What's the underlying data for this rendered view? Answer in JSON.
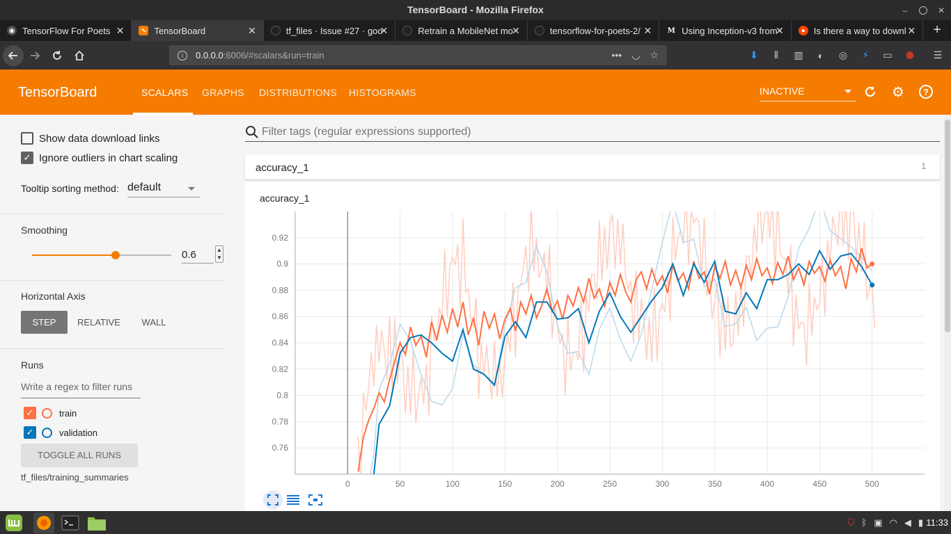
{
  "window": {
    "title": "TensorBoard - Mozilla Firefox"
  },
  "tabs": [
    {
      "label": "TensorFlow For Poets",
      "icon": "tensorflow-icon",
      "color": "#4a4a4a"
    },
    {
      "label": "TensorBoard",
      "icon": "tensorboard-icon",
      "color": "#f57c00"
    },
    {
      "label": "tf_files · Issue #27 · goo",
      "icon": "github-icon",
      "color": "#222222"
    },
    {
      "label": "Retrain a MobileNet mo",
      "icon": "github-icon",
      "color": "#222222"
    },
    {
      "label": "tensorflow-for-poets-2/",
      "icon": "github-icon",
      "color": "#222222"
    },
    {
      "label": "Using Inception-v3 from",
      "icon": "medium-icon",
      "color": "#222222"
    },
    {
      "label": "Is there a way to downl",
      "icon": "reddit-icon",
      "color": "#ff4500"
    }
  ],
  "url": {
    "host": "0.0.0.0",
    "rest": ":6006/#scalars&run=train"
  },
  "tensorboard": {
    "logo": "TensorBoard",
    "tabs": [
      "SCALARS",
      "GRAPHS",
      "DISTRIBUTIONS",
      "HISTOGRAMS"
    ],
    "active_tab": "SCALARS",
    "status": "INACTIVE",
    "accent": "#f57c00"
  },
  "sidebar": {
    "show_download_links": {
      "label": "Show data download links",
      "checked": false
    },
    "ignore_outliers": {
      "label": "Ignore outliers in chart scaling",
      "checked": true
    },
    "tooltip_label": "Tooltip sorting method:",
    "tooltip_value": "default",
    "smoothing_label": "Smoothing",
    "smoothing_value": "0.6",
    "horizontal_axis_label": "Horizontal Axis",
    "axis_options": [
      "STEP",
      "RELATIVE",
      "WALL"
    ],
    "axis_active": "STEP",
    "runs_label": "Runs",
    "runs_filter_placeholder": "Write a regex to filter runs",
    "runs": [
      {
        "name": "train",
        "color": "#ff7043",
        "checked": true
      },
      {
        "name": "validation",
        "color": "#0077bb",
        "checked": true
      }
    ],
    "toggle_all": "TOGGLE ALL RUNS",
    "logdir": "tf_files/training_summaries"
  },
  "main": {
    "filter_placeholder": "Filter tags (regular expressions supported)",
    "category": {
      "name": "accuracy_1",
      "count": "1"
    },
    "card_title": "accuracy_1"
  },
  "clock": "11:33",
  "chart_data": {
    "type": "line",
    "title": "accuracy_1",
    "xlabel": "",
    "ylabel": "",
    "xlim": [
      -50,
      550
    ],
    "ylim": [
      0.74,
      0.94
    ],
    "x_ticks": [
      0,
      50,
      100,
      150,
      200,
      250,
      300,
      350,
      400,
      450,
      500
    ],
    "y_ticks": [
      0.76,
      0.78,
      0.8,
      0.82,
      0.84,
      0.86,
      0.88,
      0.9,
      0.92
    ],
    "grid": true,
    "series": [
      {
        "name": "train",
        "color": "#ff7043",
        "x": [
          10,
          15,
          20,
          25,
          30,
          35,
          40,
          45,
          50,
          55,
          60,
          65,
          70,
          75,
          80,
          85,
          90,
          95,
          100,
          105,
          110,
          115,
          120,
          125,
          130,
          135,
          140,
          145,
          150,
          155,
          160,
          165,
          170,
          175,
          180,
          185,
          190,
          195,
          200,
          205,
          210,
          215,
          220,
          225,
          230,
          235,
          240,
          245,
          250,
          255,
          260,
          265,
          270,
          275,
          280,
          285,
          290,
          295,
          300,
          305,
          310,
          315,
          320,
          325,
          330,
          335,
          340,
          345,
          350,
          355,
          360,
          365,
          370,
          375,
          380,
          385,
          390,
          395,
          400,
          405,
          410,
          415,
          420,
          425,
          430,
          435,
          440,
          445,
          450,
          455,
          460,
          465,
          470,
          475,
          480,
          485,
          490,
          495,
          500
        ],
        "y": [
          0.742,
          0.768,
          0.781,
          0.79,
          0.802,
          0.795,
          0.812,
          0.826,
          0.84,
          0.831,
          0.852,
          0.838,
          0.845,
          0.829,
          0.856,
          0.842,
          0.861,
          0.848,
          0.866,
          0.852,
          0.871,
          0.846,
          0.859,
          0.838,
          0.864,
          0.851,
          0.862,
          0.843,
          0.858,
          0.866,
          0.849,
          0.871,
          0.862,
          0.876,
          0.859,
          0.868,
          0.881,
          0.864,
          0.872,
          0.858,
          0.876,
          0.868,
          0.882,
          0.871,
          0.889,
          0.874,
          0.881,
          0.868,
          0.886,
          0.876,
          0.892,
          0.879,
          0.871,
          0.888,
          0.894,
          0.881,
          0.896,
          0.884,
          0.891,
          0.878,
          0.899,
          0.887,
          0.893,
          0.881,
          0.902,
          0.889,
          0.894,
          0.877,
          0.898,
          0.889,
          0.902,
          0.884,
          0.895,
          0.882,
          0.899,
          0.888,
          0.904,
          0.891,
          0.897,
          0.885,
          0.901,
          0.892,
          0.906,
          0.888,
          0.897,
          0.884,
          0.902,
          0.893,
          0.898,
          0.887,
          0.903,
          0.891,
          0.898,
          0.881,
          0.904,
          0.894,
          0.912,
          0.897,
          0.9
        ]
      },
      {
        "name": "validation",
        "color": "#0077bb",
        "x": [
          20,
          25,
          30,
          40,
          50,
          60,
          70,
          80,
          90,
          100,
          110,
          120,
          130,
          140,
          150,
          160,
          170,
          180,
          190,
          200,
          210,
          220,
          230,
          240,
          250,
          260,
          270,
          280,
          290,
          300,
          310,
          320,
          330,
          340,
          350,
          360,
          370,
          380,
          390,
          400,
          410,
          420,
          430,
          440,
          450,
          460,
          470,
          480,
          490,
          500
        ],
        "y": [
          0.72,
          0.74,
          0.778,
          0.792,
          0.832,
          0.844,
          0.846,
          0.84,
          0.832,
          0.826,
          0.85,
          0.82,
          0.816,
          0.808,
          0.845,
          0.856,
          0.844,
          0.871,
          0.871,
          0.858,
          0.859,
          0.866,
          0.84,
          0.864,
          0.878,
          0.86,
          0.848,
          0.86,
          0.872,
          0.882,
          0.9,
          0.876,
          0.9,
          0.886,
          0.902,
          0.864,
          0.862,
          0.878,
          0.866,
          0.888,
          0.888,
          0.892,
          0.9,
          0.892,
          0.91,
          0.896,
          0.906,
          0.908,
          0.898,
          0.884
        ]
      }
    ]
  }
}
